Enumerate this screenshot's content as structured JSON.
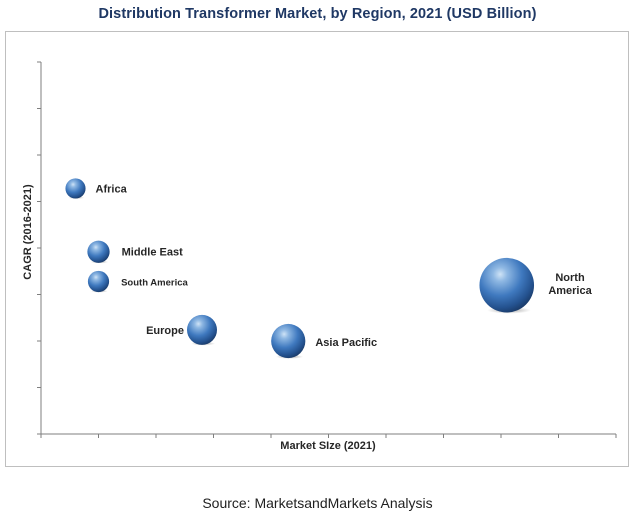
{
  "title": "Distribution  Transformer Market, by Region, 2021 (USD Billion)",
  "source": "Source: MarketsandMarkets Analysis",
  "chart_data": {
    "type": "scatter",
    "subtype": "bubble",
    "title": "Distribution  Transformer Market, by Region, 2021 (USD Billion)",
    "xlabel": "Market SIze (2021)",
    "ylabel": "CAGR (2016-2021)",
    "xlim": [
      0,
      10
    ],
    "ylim": [
      0,
      10
    ],
    "x_ticks": 10,
    "y_ticks": 8,
    "grid": false,
    "legend": "none",
    "bubble_color": "#2e6db4",
    "series": [
      {
        "label": "Africa",
        "x": 0.6,
        "y": 6.6,
        "size": 0.45
      },
      {
        "label": "Middle East",
        "x": 1.0,
        "y": 4.9,
        "size": 0.55
      },
      {
        "label": "South America",
        "x": 1.0,
        "y": 4.1,
        "size": 0.5
      },
      {
        "label": "Europe",
        "x": 2.8,
        "y": 2.8,
        "size": 1.0
      },
      {
        "label": "Asia Pacific",
        "x": 4.3,
        "y": 2.5,
        "size": 1.3
      },
      {
        "label": "North America",
        "x": 8.1,
        "y": 4.0,
        "size": 3.0
      }
    ]
  }
}
